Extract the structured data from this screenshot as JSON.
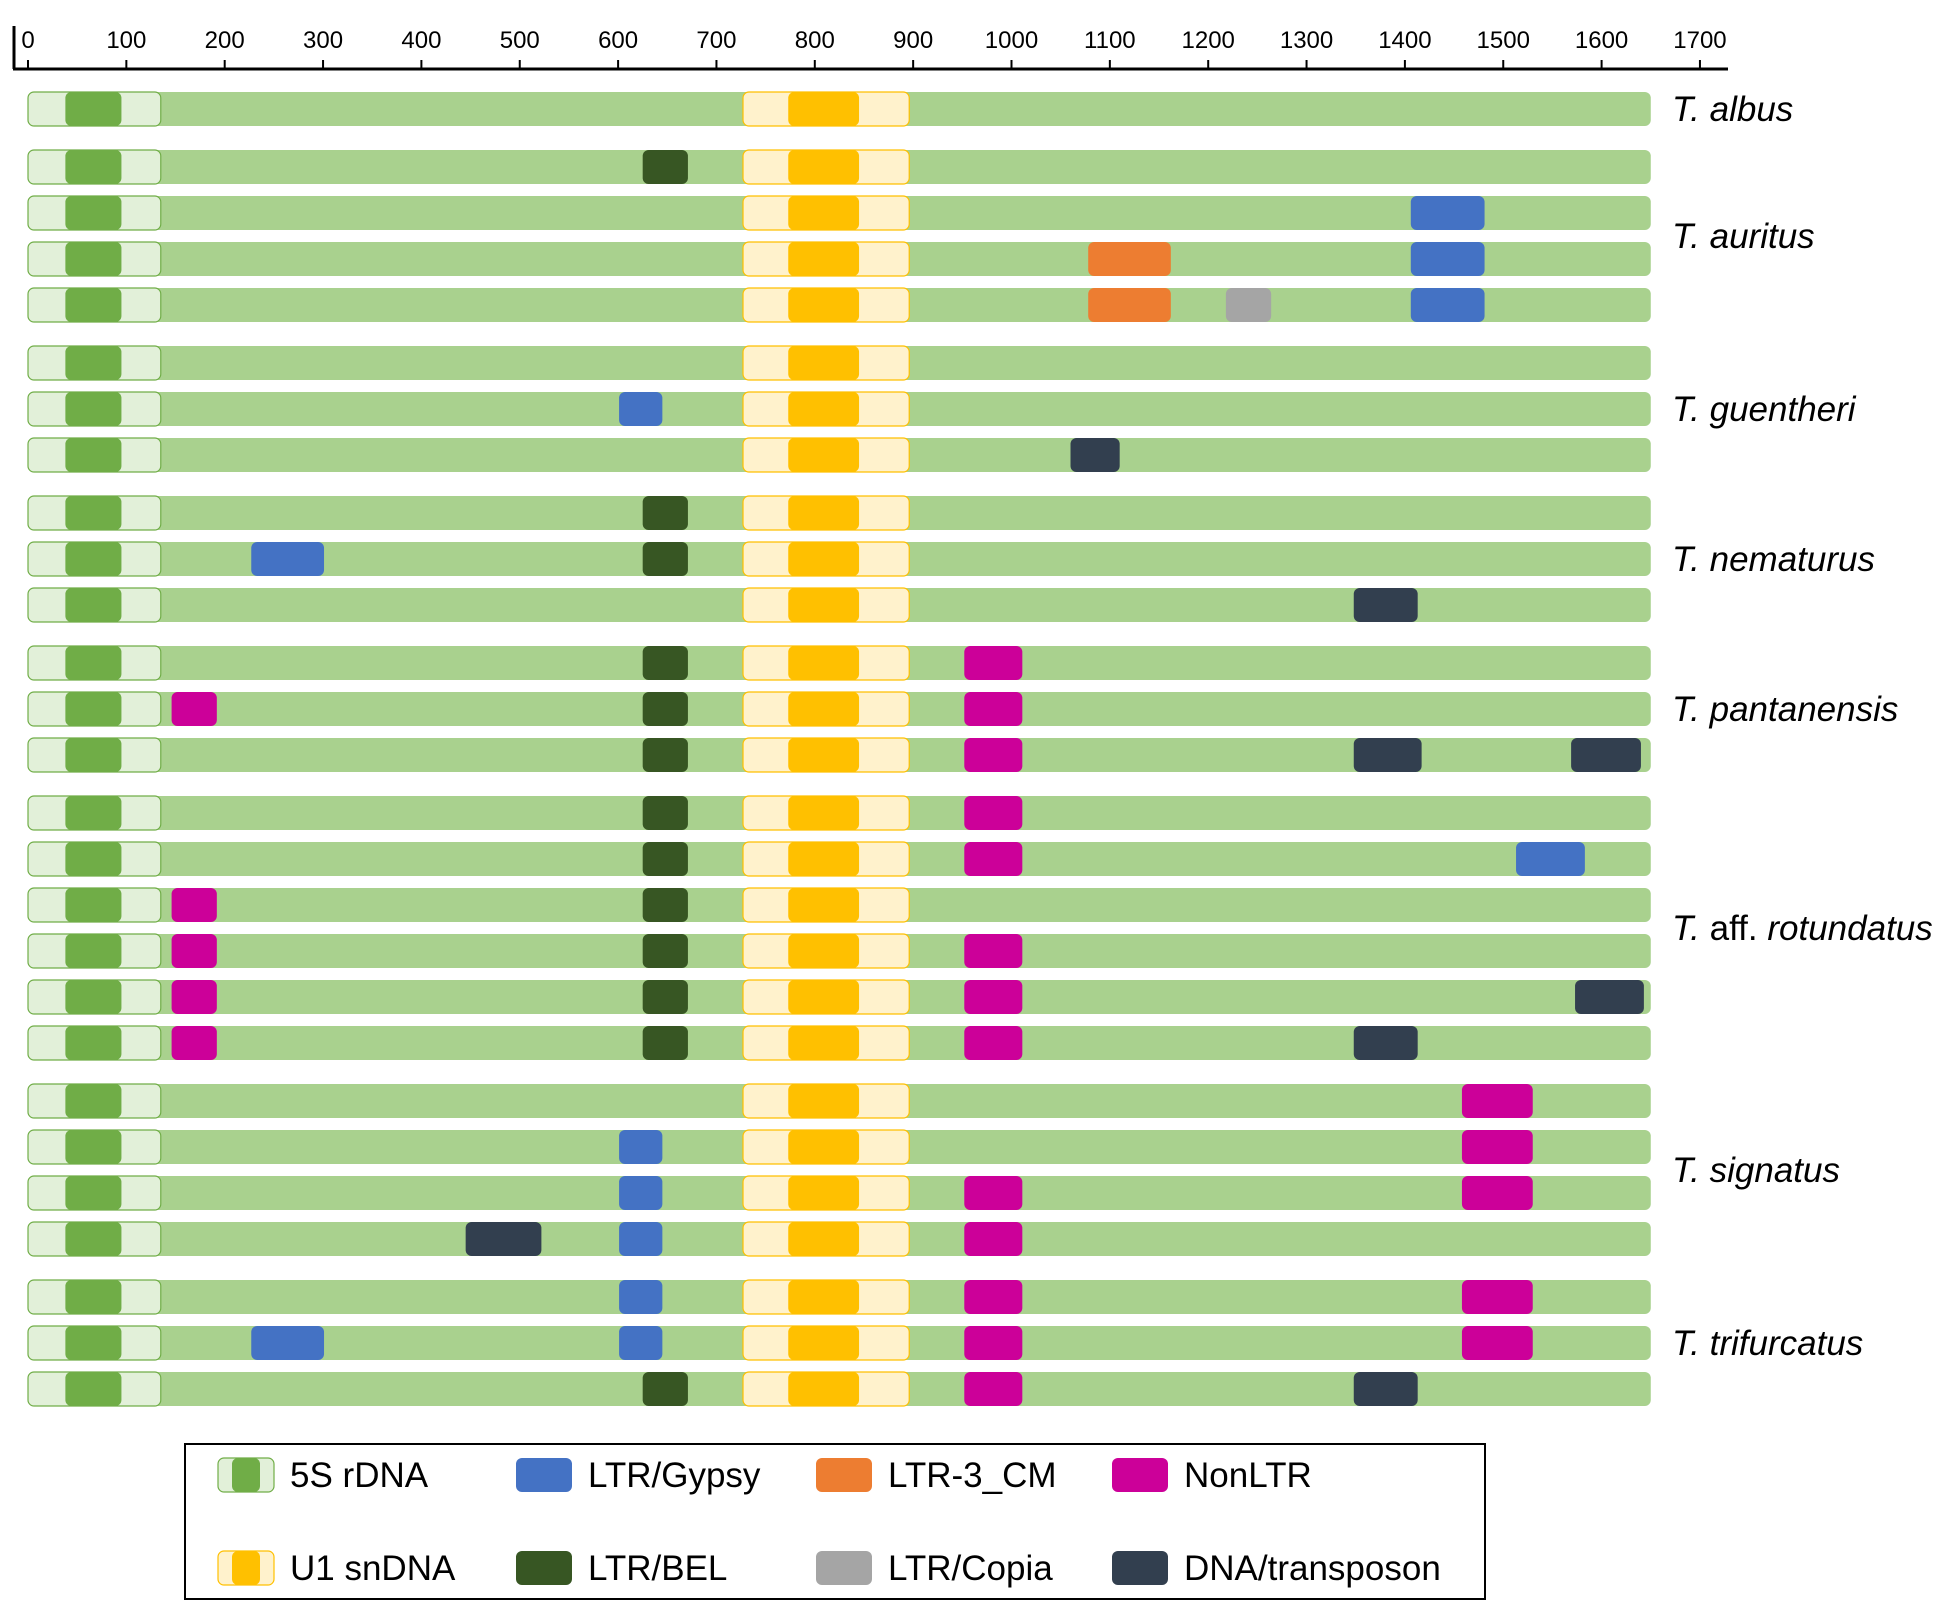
{
  "chart_data": {
    "type": "gene-structure-diagram",
    "title": "",
    "axis": {
      "unit": "bp",
      "range": [
        0,
        1700
      ],
      "ticks": [
        0,
        100,
        200,
        300,
        400,
        500,
        600,
        700,
        800,
        900,
        1000,
        1100,
        1200,
        1300,
        1400,
        1500,
        1600,
        1700
      ]
    },
    "sequence_length": 1650,
    "backbone_color": "#a9d18e",
    "features": {
      "5S": {
        "label": "5S rDNA",
        "color": "#70ad47",
        "light_color": "#e2f0d9",
        "outer_start": 0,
        "outer_end": 135,
        "inner_start": 38,
        "inner_end": 95
      },
      "U1": {
        "label": "U1 snDNA",
        "color": "#ffc000",
        "light_color": "#fff2cc",
        "outer_start": 727,
        "outer_end": 896,
        "inner_start": 773,
        "inner_end": 845
      }
    },
    "element_types": {
      "LTR/Gypsy": "#4472c4",
      "LTR/BEL": "#375623",
      "LTR-3_CM": "#ed7d31",
      "LTR/Copia": "#a5a5a5",
      "NonLTR": "#cc0099",
      "DNA/transposon": "#323f4f"
    },
    "legend": [
      {
        "label": "5S rDNA",
        "kind": "feature",
        "key": "5S"
      },
      {
        "label": "LTR/Gypsy",
        "kind": "element",
        "key": "LTR/Gypsy"
      },
      {
        "label": "LTR-3_CM",
        "kind": "element",
        "key": "LTR-3_CM"
      },
      {
        "label": "NonLTR",
        "kind": "element",
        "key": "NonLTR"
      },
      {
        "label": "U1 snDNA",
        "kind": "feature",
        "key": "U1"
      },
      {
        "label": "LTR/BEL",
        "kind": "element",
        "key": "LTR/BEL"
      },
      {
        "label": "LTR/Copia",
        "kind": "element",
        "key": "LTR/Copia"
      },
      {
        "label": "DNA/transposon",
        "kind": "element",
        "key": "DNA/transposon"
      }
    ],
    "groups": [
      {
        "species_prefix": "T.",
        "species_epithet": "albus",
        "species_qualifier": "",
        "sequences": [
          {
            "elements": []
          }
        ]
      },
      {
        "species_prefix": "T.",
        "species_epithet": "auritus",
        "species_qualifier": "",
        "sequences": [
          {
            "elements": [
              {
                "type": "LTR/BEL",
                "start": 625,
                "end": 671
              }
            ]
          },
          {
            "elements": [
              {
                "type": "LTR/Gypsy",
                "start": 1406,
                "end": 1481
              }
            ]
          },
          {
            "elements": [
              {
                "type": "LTR-3_CM",
                "start": 1078,
                "end": 1162
              },
              {
                "type": "LTR/Gypsy",
                "start": 1406,
                "end": 1481
              }
            ]
          },
          {
            "elements": [
              {
                "type": "LTR-3_CM",
                "start": 1078,
                "end": 1162
              },
              {
                "type": "LTR/Copia",
                "start": 1218,
                "end": 1264
              },
              {
                "type": "LTR/Gypsy",
                "start": 1406,
                "end": 1481
              }
            ]
          }
        ]
      },
      {
        "species_prefix": "T.",
        "species_epithet": "guentheri",
        "species_qualifier": "",
        "sequences": [
          {
            "elements": []
          },
          {
            "elements": [
              {
                "type": "LTR/Gypsy",
                "start": 601,
                "end": 645
              }
            ]
          },
          {
            "elements": [
              {
                "type": "DNA/transposon",
                "start": 1060,
                "end": 1110
              }
            ]
          }
        ]
      },
      {
        "species_prefix": "T.",
        "species_epithet": "nematurus",
        "species_qualifier": "",
        "sequences": [
          {
            "elements": [
              {
                "type": "LTR/BEL",
                "start": 625,
                "end": 671
              }
            ]
          },
          {
            "elements": [
              {
                "type": "LTR/Gypsy",
                "start": 227,
                "end": 301
              },
              {
                "type": "LTR/BEL",
                "start": 625,
                "end": 671
              }
            ]
          },
          {
            "elements": [
              {
                "type": "DNA/transposon",
                "start": 1348,
                "end": 1413
              }
            ]
          }
        ]
      },
      {
        "species_prefix": "T.",
        "species_epithet": "pantanensis",
        "species_qualifier": "",
        "sequences": [
          {
            "elements": [
              {
                "type": "LTR/BEL",
                "start": 625,
                "end": 671
              },
              {
                "type": "NonLTR",
                "start": 952,
                "end": 1011
              }
            ]
          },
          {
            "elements": [
              {
                "type": "NonLTR",
                "start": 146,
                "end": 192
              },
              {
                "type": "LTR/BEL",
                "start": 625,
                "end": 671
              },
              {
                "type": "NonLTR",
                "start": 952,
                "end": 1011
              }
            ]
          },
          {
            "elements": [
              {
                "type": "LTR/BEL",
                "start": 625,
                "end": 671
              },
              {
                "type": "NonLTR",
                "start": 952,
                "end": 1011
              },
              {
                "type": "DNA/transposon",
                "start": 1348,
                "end": 1417
              },
              {
                "type": "DNA/transposon",
                "start": 1569,
                "end": 1640
              }
            ]
          }
        ]
      },
      {
        "species_prefix": "T.",
        "species_epithet": "rotundatus",
        "species_qualifier": "aff.",
        "sequences": [
          {
            "elements": [
              {
                "type": "LTR/BEL",
                "start": 625,
                "end": 671
              },
              {
                "type": "NonLTR",
                "start": 952,
                "end": 1011
              }
            ]
          },
          {
            "elements": [
              {
                "type": "LTR/BEL",
                "start": 625,
                "end": 671
              },
              {
                "type": "NonLTR",
                "start": 952,
                "end": 1011
              },
              {
                "type": "LTR/Gypsy",
                "start": 1513,
                "end": 1583
              }
            ]
          },
          {
            "elements": [
              {
                "type": "NonLTR",
                "start": 146,
                "end": 192
              },
              {
                "type": "LTR/BEL",
                "start": 625,
                "end": 671
              }
            ]
          },
          {
            "elements": [
              {
                "type": "NonLTR",
                "start": 146,
                "end": 192
              },
              {
                "type": "LTR/BEL",
                "start": 625,
                "end": 671
              },
              {
                "type": "NonLTR",
                "start": 952,
                "end": 1011
              }
            ]
          },
          {
            "elements": [
              {
                "type": "NonLTR",
                "start": 146,
                "end": 192
              },
              {
                "type": "LTR/BEL",
                "start": 625,
                "end": 671
              },
              {
                "type": "NonLTR",
                "start": 952,
                "end": 1011
              },
              {
                "type": "DNA/transposon",
                "start": 1573,
                "end": 1643
              }
            ]
          },
          {
            "elements": [
              {
                "type": "NonLTR",
                "start": 146,
                "end": 192
              },
              {
                "type": "LTR/BEL",
                "start": 625,
                "end": 671
              },
              {
                "type": "NonLTR",
                "start": 952,
                "end": 1011
              },
              {
                "type": "DNA/transposon",
                "start": 1348,
                "end": 1413
              }
            ]
          }
        ]
      },
      {
        "species_prefix": "T.",
        "species_epithet": "signatus",
        "species_qualifier": "",
        "sequences": [
          {
            "elements": [
              {
                "type": "NonLTR",
                "start": 1458,
                "end": 1530
              }
            ]
          },
          {
            "elements": [
              {
                "type": "LTR/Gypsy",
                "start": 601,
                "end": 645
              },
              {
                "type": "NonLTR",
                "start": 1458,
                "end": 1530
              }
            ]
          },
          {
            "elements": [
              {
                "type": "LTR/Gypsy",
                "start": 601,
                "end": 645
              },
              {
                "type": "NonLTR",
                "start": 952,
                "end": 1011
              },
              {
                "type": "NonLTR",
                "start": 1458,
                "end": 1530
              }
            ]
          },
          {
            "elements": [
              {
                "type": "DNA/transposon",
                "start": 445,
                "end": 522
              },
              {
                "type": "LTR/Gypsy",
                "start": 601,
                "end": 645
              },
              {
                "type": "NonLTR",
                "start": 952,
                "end": 1011
              }
            ]
          }
        ]
      },
      {
        "species_prefix": "T.",
        "species_epithet": "trifurcatus",
        "species_qualifier": "",
        "sequences": [
          {
            "elements": [
              {
                "type": "LTR/Gypsy",
                "start": 601,
                "end": 645
              },
              {
                "type": "NonLTR",
                "start": 952,
                "end": 1011
              },
              {
                "type": "NonLTR",
                "start": 1458,
                "end": 1530
              }
            ]
          },
          {
            "elements": [
              {
                "type": "LTR/Gypsy",
                "start": 227,
                "end": 301
              },
              {
                "type": "LTR/Gypsy",
                "start": 601,
                "end": 645
              },
              {
                "type": "NonLTR",
                "start": 952,
                "end": 1011
              },
              {
                "type": "NonLTR",
                "start": 1458,
                "end": 1530
              }
            ]
          },
          {
            "elements": [
              {
                "type": "LTR/BEL",
                "start": 625,
                "end": 671
              },
              {
                "type": "NonLTR",
                "start": 952,
                "end": 1011
              },
              {
                "type": "DNA/transposon",
                "start": 1348,
                "end": 1413
              }
            ]
          }
        ]
      }
    ]
  }
}
